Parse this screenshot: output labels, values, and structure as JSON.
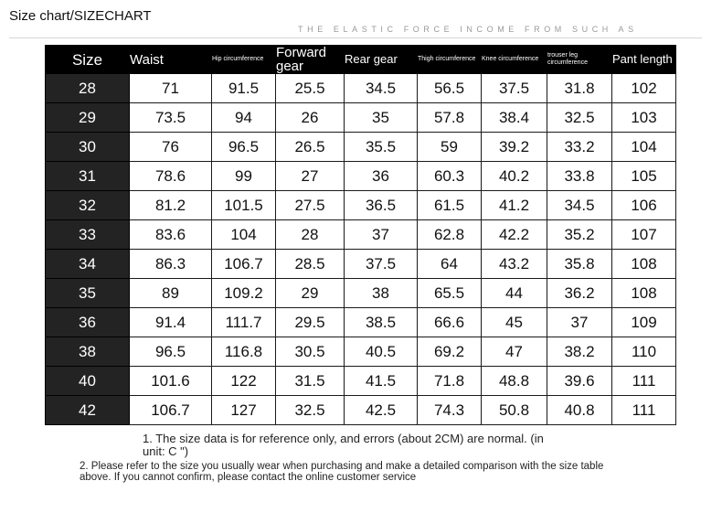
{
  "header": {
    "title": "Size chart/SIZECHART",
    "tagline": "THE ELASTIC FORCE INCOME FROM SUCH AS"
  },
  "columns": [
    "Size",
    "Waist",
    "Hip circumference",
    "Forward gear",
    "Rear gear",
    "Thigh circumference",
    "Knee circumference",
    "trouser leg circumference",
    "Pant length"
  ],
  "rows": [
    [
      "28",
      "71",
      "91.5",
      "25.5",
      "34.5",
      "56.5",
      "37.5",
      "31.8",
      "102"
    ],
    [
      "29",
      "73.5",
      "94",
      "26",
      "35",
      "57.8",
      "38.4",
      "32.5",
      "103"
    ],
    [
      "30",
      "76",
      "96.5",
      "26.5",
      "35.5",
      "59",
      "39.2",
      "33.2",
      "104"
    ],
    [
      "31",
      "78.6",
      "99",
      "27",
      "36",
      "60.3",
      "40.2",
      "33.8",
      "105"
    ],
    [
      "32",
      "81.2",
      "101.5",
      "27.5",
      "36.5",
      "61.5",
      "41.2",
      "34.5",
      "106"
    ],
    [
      "33",
      "83.6",
      "104",
      "28",
      "37",
      "62.8",
      "42.2",
      "35.2",
      "107"
    ],
    [
      "34",
      "86.3",
      "106.7",
      "28.5",
      "37.5",
      "64",
      "43.2",
      "35.8",
      "108"
    ],
    [
      "35",
      "89",
      "109.2",
      "29",
      "38",
      "65.5",
      "44",
      "36.2",
      "108"
    ],
    [
      "36",
      "91.4",
      "111.7",
      "29.5",
      "38.5",
      "66.6",
      "45",
      "37",
      "109"
    ],
    [
      "38",
      "96.5",
      "116.8",
      "30.5",
      "40.5",
      "69.2",
      "47",
      "38.2",
      "110"
    ],
    [
      "40",
      "101.6",
      "122",
      "31.5",
      "41.5",
      "71.8",
      "48.8",
      "39.6",
      "111"
    ],
    [
      "42",
      "106.7",
      "127",
      "32.5",
      "42.5",
      "74.3",
      "50.8",
      "40.8",
      "111"
    ]
  ],
  "notes": {
    "note1": "1. The size data is for reference only, and errors (about 2CM) are normal. (in unit: C \")",
    "note2": "2. Please refer to the size you usually wear when purchasing and make a detailed comparison with the size table above. If you cannot confirm, please contact the online customer service"
  },
  "colors": {
    "header_bg": "#000000",
    "size_col_bg": "#232323",
    "text": "#111111",
    "tagline": "#9a9a9a"
  }
}
